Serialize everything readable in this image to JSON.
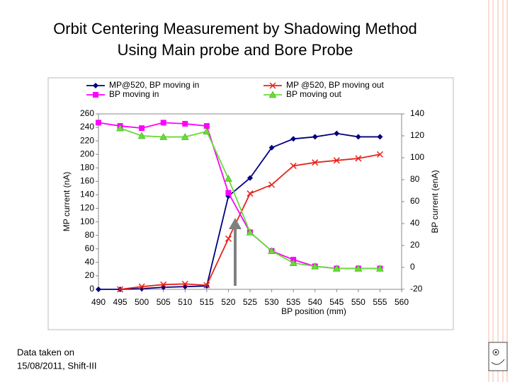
{
  "slide": {
    "title": [
      "Orbit Centering Measurement by Shadowing Method",
      "Using Main probe and Bore Probe"
    ],
    "note": [
      "Data taken on",
      "15/08/2011, Shift-III"
    ]
  },
  "chart_data": {
    "type": "line",
    "x": [
      490,
      495,
      500,
      505,
      510,
      515,
      520,
      525,
      530,
      535,
      540,
      545,
      550,
      555
    ],
    "series": [
      {
        "name": "MP@520, BP moving in",
        "color": "#000080",
        "marker": "diamond",
        "axis": "y",
        "values": [
          0,
          0,
          1,
          3,
          4,
          5,
          138,
          165,
          210,
          223,
          226,
          231,
          226,
          226
        ]
      },
      {
        "name": "MP @520, BP moving out",
        "color": "#e8231c",
        "marker": "x",
        "axis": "y",
        "values": [
          null,
          0,
          4,
          7,
          8,
          6,
          75,
          142,
          155,
          183,
          188,
          191,
          194,
          200
        ]
      },
      {
        "name": "BP moving in",
        "color": "#ff00ff",
        "marker": "square",
        "axis": "y2",
        "values": [
          132,
          129,
          127,
          132,
          131,
          129,
          68,
          32,
          15,
          7,
          1,
          -1,
          -1,
          -1
        ]
      },
      {
        "name": "BP moving out",
        "color": "#66dd33",
        "marker": "triangle",
        "axis": "y2",
        "values": [
          null,
          127,
          120,
          119,
          119,
          124,
          81,
          32,
          15,
          4,
          1,
          -1,
          -1,
          -1
        ]
      }
    ],
    "xlabel": "BP position (mm)",
    "ylabel": "MP current (nA)",
    "y2label": "BP current (enA)",
    "xlim": [
      490,
      560
    ],
    "xticks": [
      490,
      495,
      500,
      505,
      510,
      515,
      520,
      525,
      530,
      535,
      540,
      545,
      550,
      555,
      560
    ],
    "ylim": [
      0,
      260
    ],
    "yticks": [
      0,
      20,
      40,
      60,
      80,
      100,
      120,
      140,
      160,
      180,
      200,
      220,
      240,
      260
    ],
    "y2lim": [
      -20,
      140
    ],
    "y2ticks": [
      -20,
      0,
      20,
      40,
      60,
      80,
      100,
      120,
      140
    ]
  }
}
